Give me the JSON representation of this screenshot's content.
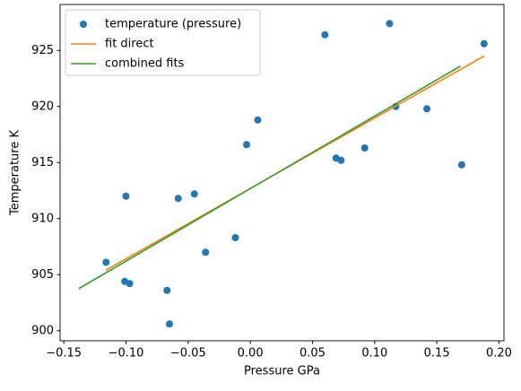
{
  "chart_data": {
    "type": "scatter",
    "xlabel": "Pressure GPa",
    "ylabel": "Temperature K",
    "xlim": [
      -0.153,
      0.204
    ],
    "ylim": [
      899.1,
      929.1
    ],
    "xticks": [
      {
        "value": -0.15,
        "label": "−0.15"
      },
      {
        "value": -0.1,
        "label": "−0.10"
      },
      {
        "value": -0.05,
        "label": "−0.05"
      },
      {
        "value": 0,
        "label": "0.00"
      },
      0.05,
      {
        "value": 0.1,
        "label": "0.10"
      },
      0.15,
      {
        "value": 0.2,
        "label": "0.20"
      }
    ],
    "yticks": [
      900,
      905,
      910,
      915,
      920,
      925
    ],
    "grid": false,
    "legend": "upper left",
    "series": [
      {
        "name": "temperature (pressure)",
        "type": "scatter",
        "color": "#1f77b4",
        "x": [
          -0.116,
          -0.1,
          -0.101,
          -0.097,
          -0.067,
          -0.065,
          -0.058,
          -0.045,
          -0.036,
          -0.012,
          -0.003,
          0.006,
          0.06,
          0.069,
          0.073,
          0.092,
          0.112,
          0.117,
          0.142,
          0.17,
          0.188
        ],
        "values": [
          906.1,
          912.0,
          904.4,
          904.2,
          903.6,
          900.6,
          911.8,
          912.2,
          907.0,
          908.3,
          916.6,
          918.8,
          926.4,
          915.4,
          915.2,
          916.3,
          927.4,
          920.0,
          919.8,
          914.8,
          925.6
        ]
      },
      {
        "name": "fit direct",
        "type": "line",
        "color": "#ff7f0e",
        "x": [
          -0.116,
          0.188
        ],
        "values": [
          905.4,
          924.5
        ]
      },
      {
        "name": "combined fits",
        "type": "line",
        "color": "#2ca02c",
        "x": [
          -0.138,
          0.169
        ],
        "values": [
          903.75,
          923.6
        ]
      }
    ]
  }
}
